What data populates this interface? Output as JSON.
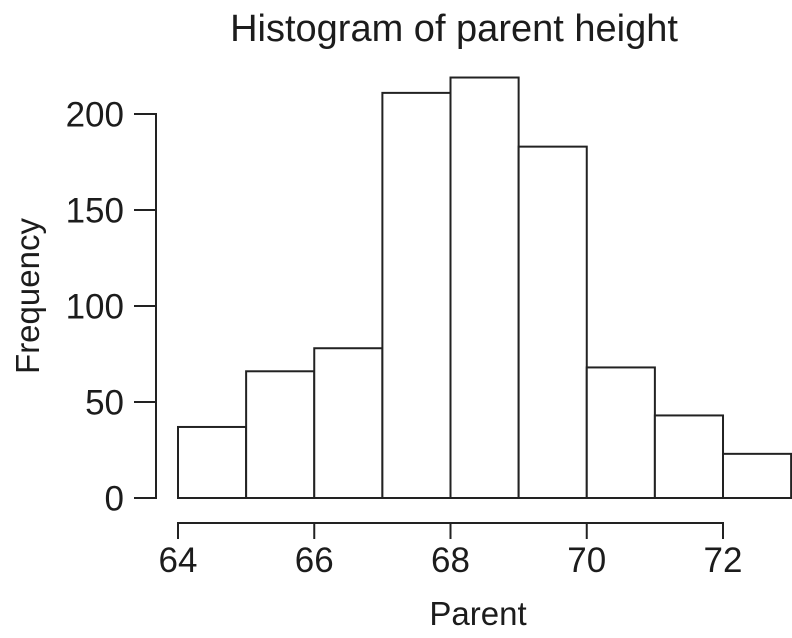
{
  "chart_data": {
    "type": "bar",
    "subtype": "histogram",
    "title": "Histogram of parent height",
    "xlabel": "Parent",
    "ylabel": "Frequency",
    "bin_edges": [
      64,
      65,
      66,
      67,
      68,
      69,
      70,
      71,
      72,
      73
    ],
    "values": [
      37,
      66,
      78,
      211,
      219,
      183,
      68,
      43,
      23
    ],
    "x_ticks": [
      64,
      66,
      68,
      70,
      72
    ],
    "y_ticks": [
      0,
      50,
      100,
      150,
      200
    ],
    "xlim": [
      64,
      73
    ],
    "ylim": [
      0,
      200
    ],
    "grid": false,
    "legend": null,
    "bar_fill": "#ffffff",
    "line_color": "#222222"
  }
}
